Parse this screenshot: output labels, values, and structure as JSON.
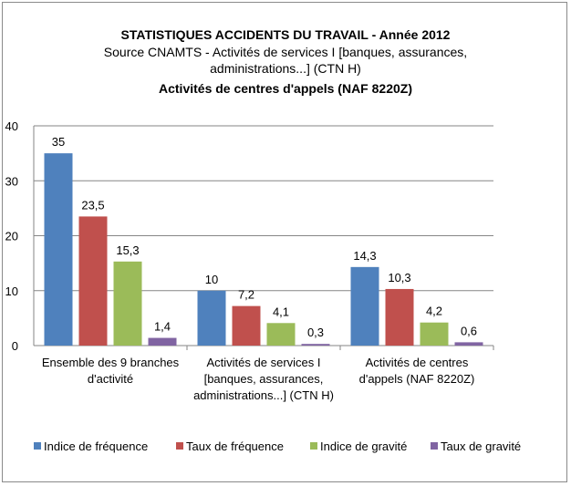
{
  "chart_data": {
    "type": "bar",
    "title": "STATISTIQUES ACCIDENTS DU TRAVAIL - Année 2012",
    "subtitle_lines": [
      "Source CNAMTS - Activités de services I [banques, assurances,",
      "administrations...] (CTN H)",
      "Activités de centres d'appels (NAF 8220Z)"
    ],
    "categories": [
      [
        "Ensemble des 9 branches",
        "d'activité"
      ],
      [
        "Activités de services I",
        "[banques, assurances,",
        "administrations...] (CTN H)"
      ],
      [
        "Activités de centres",
        "d'appels (NAF 8220Z)"
      ]
    ],
    "series": [
      {
        "name": "Indice de fréquence",
        "color": "#4f81bd",
        "values": [
          35,
          10,
          14.3
        ],
        "labels": [
          "35",
          "10",
          "14,3"
        ]
      },
      {
        "name": "Taux de fréquence",
        "color": "#c0504d",
        "values": [
          23.5,
          7.2,
          10.3
        ],
        "labels": [
          "23,5",
          "7,2",
          "10,3"
        ]
      },
      {
        "name": "Indice de gravité",
        "color": "#9bbb59",
        "values": [
          15.3,
          4.1,
          4.2
        ],
        "labels": [
          "15,3",
          "4,1",
          "4,2"
        ]
      },
      {
        "name": "Taux de gravité",
        "color": "#8064a2",
        "values": [
          1.4,
          0.3,
          0.6
        ],
        "labels": [
          "1,4",
          "0,3",
          "0,6"
        ]
      }
    ],
    "ylim": [
      0,
      40
    ],
    "yticks": [
      "0",
      "10",
      "20",
      "30",
      "40"
    ],
    "grid": true,
    "legend_position": "bottom"
  }
}
